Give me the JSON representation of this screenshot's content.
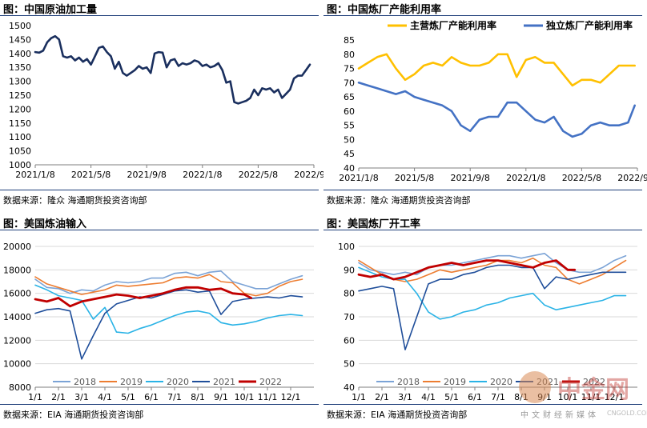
{
  "panels": [
    {
      "title": "图：中国原油加工量",
      "source": "数据来源：隆众    海通期货投资咨询部"
    },
    {
      "title": "图：中国炼厂产能利用率",
      "source": "数据来源：隆众    海通期货投资咨询部"
    },
    {
      "title": "图：美国炼油输入",
      "source": "数据来源：EIA    海通期货投资咨询部"
    },
    {
      "title": "图：美国炼厂开工率",
      "source": "数据来源：EIA    海通期货投资咨询部"
    }
  ],
  "watermark": {
    "name": "中金网",
    "subtitle": "中文财经新媒体",
    "url": "CNGOLD.COM.CN"
  },
  "chart_data": [
    {
      "type": "line",
      "title": "中国原油加工量",
      "x_tick_labels": [
        "2021/1/8",
        "2021/5/8",
        "2021/9/8",
        "2022/1/8",
        "2022/5/8",
        "2022/9/8"
      ],
      "y_ticks": [
        1000,
        1050,
        1100,
        1150,
        1200,
        1250,
        1300,
        1350,
        1400,
        1450,
        1500
      ],
      "ylim": [
        1000,
        1500
      ],
      "x_range": [
        0,
        21
      ],
      "color": "#1a2f5e",
      "series": [
        {
          "x": [
            0,
            0.3,
            0.6,
            0.9,
            1.2,
            1.5,
            1.8,
            2.1,
            2.4,
            2.7,
            3,
            3.3,
            3.6,
            3.9,
            4.2,
            4.5,
            4.8,
            5.1,
            5.4,
            5.7,
            6,
            6.3,
            6.6,
            6.9,
            7.2,
            7.5,
            7.8,
            8.1,
            8.4,
            8.7,
            9,
            9.3,
            9.6,
            9.9,
            10.2,
            10.5,
            10.8,
            11.1,
            11.4,
            11.7,
            12,
            12.3,
            12.6,
            12.9,
            13.2,
            13.5,
            13.8,
            14.1,
            14.4,
            14.7,
            15,
            15.3,
            15.6,
            15.9,
            16.2,
            16.5,
            16.8,
            17.1,
            17.4,
            17.7,
            18,
            18.3,
            18.6,
            18.9,
            19.2,
            19.5,
            19.8,
            20.1,
            20.4,
            20.7
          ],
          "values": [
            1405,
            1403,
            1410,
            1440,
            1455,
            1462,
            1450,
            1390,
            1385,
            1390,
            1375,
            1385,
            1370,
            1380,
            1360,
            1390,
            1420,
            1425,
            1405,
            1390,
            1345,
            1370,
            1330,
            1320,
            1330,
            1340,
            1355,
            1345,
            1350,
            1330,
            1400,
            1405,
            1403,
            1350,
            1375,
            1380,
            1355,
            1365,
            1360,
            1365,
            1375,
            1370,
            1355,
            1360,
            1350,
            1355,
            1365,
            1340,
            1295,
            1300,
            1225,
            1220,
            1225,
            1230,
            1240,
            1270,
            1250,
            1275,
            1270,
            1275,
            1260,
            1270,
            1240,
            1255,
            1270,
            1310,
            1320,
            1320,
            1340,
            1360
          ]
        }
      ]
    },
    {
      "type": "line",
      "title": "中国炼厂产能利用率",
      "x_tick_labels": [
        "2021/1/8",
        "2021/5/8",
        "2021/9/8",
        "2022/1/8",
        "2022/5/8",
        "2022/9/8"
      ],
      "y_ticks": [
        40,
        45,
        50,
        55,
        60,
        65,
        70,
        75,
        80,
        85
      ],
      "ylim": [
        40,
        85
      ],
      "x_range": [
        0,
        21
      ],
      "legend": [
        "主营炼厂产能利用率",
        "独立炼厂产能利用率"
      ],
      "legend_position": "top",
      "series": [
        {
          "name": "主营炼厂产能利用率",
          "color": "#ffc000",
          "x": [
            0,
            0.7,
            1.4,
            2.1,
            2.8,
            3.5,
            4.2,
            4.9,
            5.6,
            6.3,
            7,
            7.7,
            8.4,
            9.1,
            9.8,
            10.5,
            11.2,
            11.9,
            12.6,
            13.3,
            14,
            14.7,
            15.4,
            16.1,
            16.8,
            17.5,
            18.2,
            18.9,
            19.6,
            20.3,
            20.8
          ],
          "values": [
            75,
            77,
            79,
            80,
            75,
            71,
            73,
            76,
            77,
            76,
            79,
            77,
            76,
            76,
            77,
            80,
            80,
            72,
            78,
            79,
            77,
            77,
            73,
            69,
            71,
            71,
            70,
            73,
            76,
            76,
            76
          ]
        },
        {
          "name": "独立炼厂产能利用率",
          "color": "#4472c4",
          "x": [
            0,
            0.7,
            1.4,
            2.1,
            2.8,
            3.5,
            4.2,
            4.9,
            5.6,
            6.3,
            7,
            7.7,
            8.4,
            9.1,
            9.8,
            10.5,
            11.2,
            11.9,
            12.6,
            13.3,
            14,
            14.7,
            15.4,
            16.1,
            16.8,
            17.5,
            18.2,
            18.9,
            19.6,
            20.3,
            20.8
          ],
          "values": [
            70,
            69,
            68,
            67,
            66,
            67,
            65,
            64,
            63,
            62,
            60,
            55,
            53,
            57,
            58,
            58,
            63,
            63,
            60,
            57,
            56,
            58,
            53,
            51,
            52,
            55,
            56,
            55,
            55,
            56,
            62
          ]
        }
      ]
    },
    {
      "type": "line",
      "title": "美国炼油输入",
      "x_tick_labels": [
        "1/1",
        "2/1",
        "3/1",
        "4/1",
        "5/1",
        "6/1",
        "7/1",
        "8/1",
        "9/1",
        "10/1",
        "11/1",
        "12/1"
      ],
      "y_ticks": [
        8000,
        10000,
        12000,
        14000,
        16000,
        18000,
        20000
      ],
      "ylim": [
        8000,
        20000
      ],
      "x_range": [
        0,
        12
      ],
      "legend": [
        "2018",
        "2019",
        "2020",
        "2021",
        "2022"
      ],
      "legend_position": "bottom",
      "series": [
        {
          "name": "2018",
          "color": "#7ba3d6",
          "x": [
            0,
            0.5,
            1,
            1.5,
            2,
            2.5,
            3,
            3.5,
            4,
            4.5,
            5,
            5.5,
            6,
            6.5,
            7,
            7.5,
            8,
            8.5,
            9,
            9.5,
            10,
            10.5,
            11,
            11.5
          ],
          "values": [
            17200,
            16500,
            16400,
            16000,
            16300,
            16200,
            16700,
            17000,
            16900,
            17000,
            17300,
            17300,
            17700,
            17800,
            17500,
            17800,
            17900,
            17000,
            16700,
            16400,
            16400,
            16800,
            17200,
            17500
          ]
        },
        {
          "name": "2019",
          "color": "#ed7d31",
          "x": [
            0,
            0.5,
            1,
            1.5,
            2,
            2.5,
            3,
            3.5,
            4,
            4.5,
            5,
            5.5,
            6,
            6.5,
            7,
            7.5,
            8,
            8.5,
            9,
            9.5,
            10,
            10.5,
            11,
            11.5
          ],
          "values": [
            17400,
            16800,
            16500,
            16200,
            15900,
            16100,
            16300,
            16700,
            16600,
            16700,
            16800,
            16900,
            17300,
            17400,
            17300,
            17600,
            17000,
            16900,
            16000,
            15800,
            16000,
            16600,
            17000,
            17200
          ]
        },
        {
          "name": "2020",
          "color": "#2ab3e6",
          "x": [
            0,
            0.5,
            1,
            1.5,
            2,
            2.5,
            3,
            3.5,
            4,
            4.5,
            5,
            5.5,
            6,
            6.5,
            7,
            7.5,
            8,
            8.5,
            9,
            9.5,
            10,
            10.5,
            11,
            11.5
          ],
          "values": [
            16700,
            16300,
            15800,
            15600,
            15400,
            13800,
            14800,
            12700,
            12600,
            13000,
            13300,
            13700,
            14100,
            14400,
            14500,
            14300,
            13500,
            13300,
            13400,
            13600,
            13900,
            14100,
            14200,
            14100
          ]
        },
        {
          "name": "2021",
          "color": "#1f4e9a",
          "x": [
            0,
            0.5,
            1,
            1.5,
            2,
            2.5,
            3,
            3.5,
            4,
            4.5,
            5,
            5.5,
            6,
            6.5,
            7,
            7.5,
            8,
            8.5,
            9,
            9.5,
            10,
            10.5,
            11,
            11.5
          ],
          "values": [
            14300,
            14600,
            14700,
            14500,
            10400,
            12400,
            14300,
            15100,
            15400,
            15700,
            15600,
            15900,
            16200,
            16300,
            16100,
            16200,
            14200,
            15300,
            15500,
            15600,
            15700,
            15600,
            15800,
            15700
          ]
        },
        {
          "name": "2022",
          "color": "#c00000",
          "x": [
            0,
            0.5,
            1,
            1.5,
            2,
            2.5,
            3,
            3.5,
            4,
            4.5,
            5,
            5.5,
            6,
            6.5,
            7,
            7.5,
            8,
            8.5,
            9,
            9.3
          ],
          "values": [
            15500,
            15300,
            15600,
            14900,
            15300,
            15500,
            15700,
            15900,
            15800,
            15600,
            15800,
            16000,
            16300,
            16500,
            16500,
            16300,
            16400,
            16000,
            15900,
            15600
          ]
        }
      ]
    },
    {
      "type": "line",
      "title": "美国炼厂开工率",
      "x_tick_labels": [
        "1/1",
        "2/1",
        "3/1",
        "4/1",
        "5/1",
        "6/1",
        "7/1",
        "8/1",
        "9/1",
        "10/1",
        "11/1",
        "12/1"
      ],
      "y_ticks": [
        40,
        50,
        60,
        70,
        80,
        90,
        100
      ],
      "ylim": [
        40,
        100
      ],
      "x_range": [
        0,
        12
      ],
      "legend": [
        "2018",
        "2019",
        "2020",
        "2021",
        "2022"
      ],
      "legend_position": "bottom",
      "series": [
        {
          "name": "2018",
          "color": "#7ba3d6",
          "x": [
            0,
            0.5,
            1,
            1.5,
            2,
            2.5,
            3,
            3.5,
            4,
            4.5,
            5,
            5.5,
            6,
            6.5,
            7,
            7.5,
            8,
            8.5,
            9,
            9.5,
            10,
            10.5,
            11,
            11.5
          ],
          "values": [
            93,
            90,
            89,
            88,
            89,
            88,
            91,
            92,
            92,
            93,
            94,
            95,
            96,
            96,
            95,
            96,
            97,
            93,
            90,
            89,
            89,
            91,
            94,
            96
          ]
        },
        {
          "name": "2019",
          "color": "#ed7d31",
          "x": [
            0,
            0.5,
            1,
            1.5,
            2,
            2.5,
            3,
            3.5,
            4,
            4.5,
            5,
            5.5,
            6,
            6.5,
            7,
            7.5,
            8,
            8.5,
            9,
            9.5,
            10,
            10.5,
            11,
            11.5
          ],
          "values": [
            94,
            91,
            88,
            86,
            85,
            86,
            88,
            90,
            89,
            90,
            91,
            92,
            94,
            94,
            93,
            95,
            92,
            91,
            86,
            84,
            86,
            88,
            91,
            94
          ]
        },
        {
          "name": "2020",
          "color": "#2ab3e6",
          "x": [
            0,
            0.5,
            1,
            1.5,
            2,
            2.5,
            3,
            3.5,
            4,
            4.5,
            5,
            5.5,
            6,
            6.5,
            7,
            7.5,
            8,
            8.5,
            9,
            9.5,
            10,
            10.5,
            11,
            11.5
          ],
          "values": [
            91,
            89,
            87,
            86,
            86,
            80,
            72,
            69,
            70,
            72,
            73,
            75,
            76,
            78,
            79,
            80,
            75,
            73,
            74,
            75,
            76,
            77,
            79,
            79
          ]
        },
        {
          "name": "2021",
          "color": "#1f4e9a",
          "x": [
            0,
            0.5,
            1,
            1.5,
            2,
            2.5,
            3,
            3.5,
            4,
            4.5,
            5,
            5.5,
            6,
            6.5,
            7,
            7.5,
            8,
            8.5,
            9,
            9.5,
            10,
            10.5,
            11,
            11.5
          ],
          "values": [
            81,
            82,
            83,
            82,
            56,
            70,
            84,
            86,
            86,
            88,
            89,
            91,
            92,
            92,
            91,
            91,
            82,
            87,
            86,
            87,
            88,
            89,
            89,
            89
          ]
        },
        {
          "name": "2022",
          "color": "#c00000",
          "x": [
            0,
            0.5,
            1,
            1.5,
            2,
            2.5,
            3,
            3.5,
            4,
            4.5,
            5,
            5.5,
            6,
            6.5,
            7,
            7.5,
            8,
            8.5,
            9,
            9.3
          ],
          "values": [
            88,
            87,
            88,
            86,
            87,
            89,
            91,
            92,
            93,
            92,
            93,
            94,
            94,
            93,
            92,
            91,
            93,
            94,
            90,
            90
          ]
        }
      ]
    }
  ]
}
